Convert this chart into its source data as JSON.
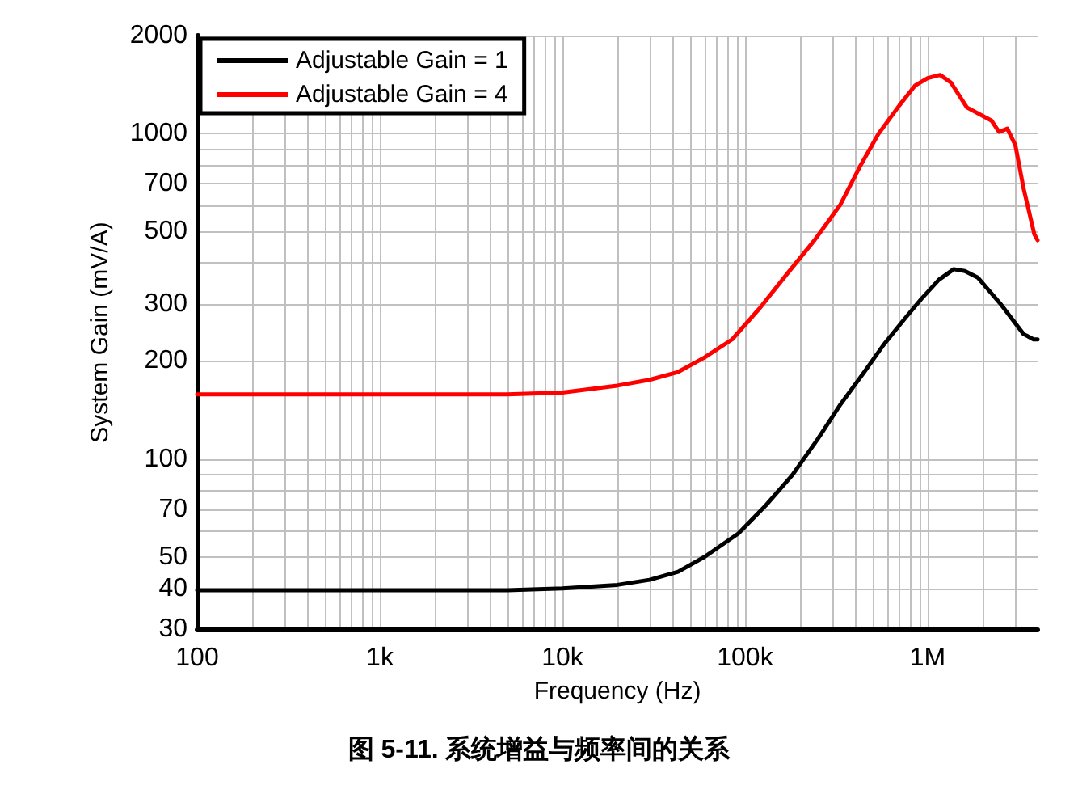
{
  "chart_data": {
    "type": "line",
    "title": "图 5-11. 系统增益与频率间的关系",
    "xlabel": "Frequency (Hz)",
    "ylabel": "System Gain (mV/A)",
    "log": "xy",
    "grid": true,
    "legend": "top left",
    "marker": "none",
    "line_style": "solid",
    "xlim": [
      100,
      4000000
    ],
    "xticks": [
      100,
      {
        "value": 200,
        "label": null
      },
      {
        "value": 300,
        "label": null
      },
      {
        "value": 400,
        "label": null
      },
      {
        "value": 500,
        "label": null
      },
      {
        "value": 600,
        "label": null
      },
      {
        "value": 700,
        "label": null
      },
      {
        "value": 800,
        "label": null
      },
      {
        "value": 900,
        "label": null
      },
      {
        "value": 1000,
        "label": "1k"
      },
      {
        "value": 2000,
        "label": null
      },
      {
        "value": 3000,
        "label": null
      },
      {
        "value": 4000,
        "label": null
      },
      {
        "value": 5000,
        "label": null
      },
      {
        "value": 6000,
        "label": null
      },
      {
        "value": 7000,
        "label": null
      },
      {
        "value": 8000,
        "label": null
      },
      {
        "value": 9000,
        "label": null
      },
      {
        "value": 10000,
        "label": "10k"
      },
      {
        "value": 20000,
        "label": null
      },
      {
        "value": 30000,
        "label": null
      },
      {
        "value": 40000,
        "label": null
      },
      {
        "value": 50000,
        "label": null
      },
      {
        "value": 60000,
        "label": null
      },
      {
        "value": 70000,
        "label": null
      },
      {
        "value": 80000,
        "label": null
      },
      {
        "value": 90000,
        "label": null
      },
      {
        "value": 100000,
        "label": "100k"
      },
      {
        "value": 200000,
        "label": null
      },
      {
        "value": 300000,
        "label": null
      },
      {
        "value": 400000,
        "label": null
      },
      {
        "value": 500000,
        "label": null
      },
      {
        "value": 600000,
        "label": null
      },
      {
        "value": 700000,
        "label": null
      },
      {
        "value": 800000,
        "label": null
      },
      {
        "value": 900000,
        "label": null
      },
      {
        "value": 1000000,
        "label": "1M"
      },
      {
        "value": 2000000,
        "label": null
      },
      {
        "value": 3000000,
        "label": null
      }
    ],
    "ylim": [
      30,
      2000
    ],
    "yticks": [
      30,
      40,
      50,
      {
        "value": 60,
        "label": null
      },
      70,
      {
        "value": 80,
        "label": null
      },
      {
        "value": 90,
        "label": null
      },
      100,
      200,
      300,
      {
        "value": 400,
        "label": null
      },
      500,
      {
        "value": 600,
        "label": null
      },
      700,
      {
        "value": 800,
        "label": null
      },
      {
        "value": 900,
        "label": null
      },
      1000,
      2000
    ],
    "series": [
      {
        "name": "Adjustable Gain = 1",
        "color": "#000000",
        "x": [
          100,
          1000,
          5000,
          10000,
          20000,
          30000,
          43000,
          60000,
          92000,
          130000,
          181000,
          250000,
          333000,
          450000,
          573000,
          750000,
          922000,
          1150000,
          1390000,
          1600000,
          1880000,
          2500000,
          3350000,
          3800000,
          4000000
        ],
        "values": [
          39.5,
          39.5,
          39.5,
          40,
          41,
          42.5,
          45,
          50,
          59,
          72,
          89,
          115,
          147,
          185,
          224,
          270,
          310,
          355,
          383,
          378,
          361,
          300,
          242,
          233,
          233
        ]
      },
      {
        "name": "Adjustable Gain = 4",
        "color": "#ff0000",
        "x": [
          100,
          1000,
          5000,
          10000,
          20000,
          30000,
          43000,
          60000,
          85000,
          120000,
          169000,
          240000,
          333000,
          430000,
          537000,
          700000,
          852000,
          1000000,
          1170000,
          1340000,
          1640000,
          2240000,
          2460000,
          2730000,
          3020000,
          3350000,
          3840000,
          4000000
        ],
        "values": [
          158,
          158,
          158,
          160,
          168,
          175,
          185,
          205,
          233,
          290,
          369,
          470,
          605,
          800,
          996,
          1220,
          1403,
          1480,
          1514,
          1435,
          1203,
          1095,
          1012,
          1035,
          922,
          679,
          490,
          470
        ]
      }
    ]
  }
}
